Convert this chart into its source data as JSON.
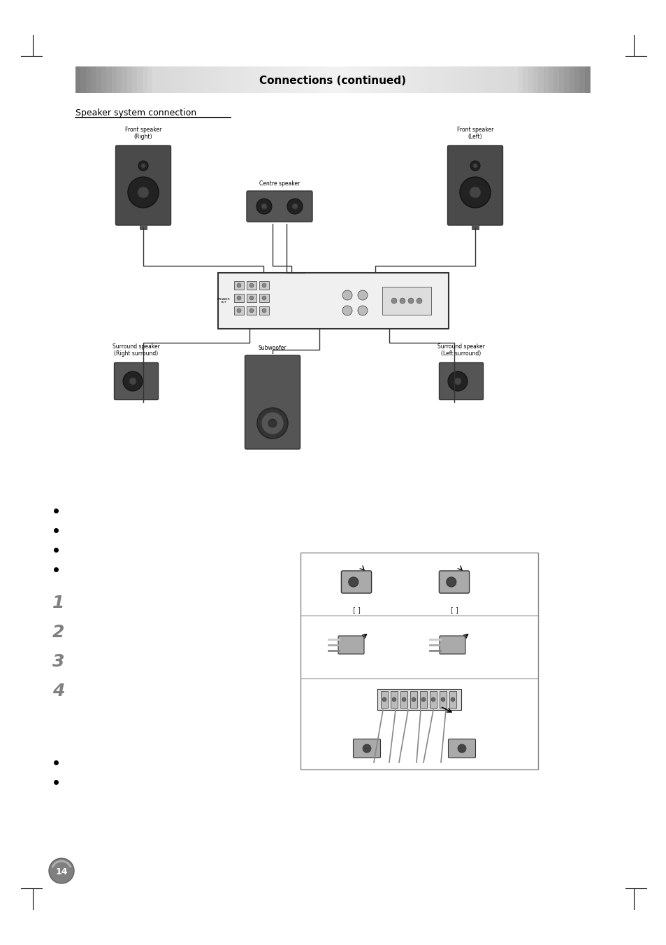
{
  "page_width": 9.54,
  "page_height": 13.51,
  "bg_color": "#ffffff",
  "header_gradient_top": "#a0a0a0",
  "header_gradient_mid": "#e8e8e8",
  "header_gradient_bot": "#a0a0a0",
  "section_title": "Connections (continued)",
  "subsection_title": "Speaker system connection",
  "page_number": "14",
  "margin_marks": true,
  "bullet_points_top": [
    "",
    "",
    "",
    ""
  ],
  "numbered_items": [
    "1",
    "2",
    "3",
    "4"
  ],
  "bullet_points_bot": [
    "",
    ""
  ]
}
